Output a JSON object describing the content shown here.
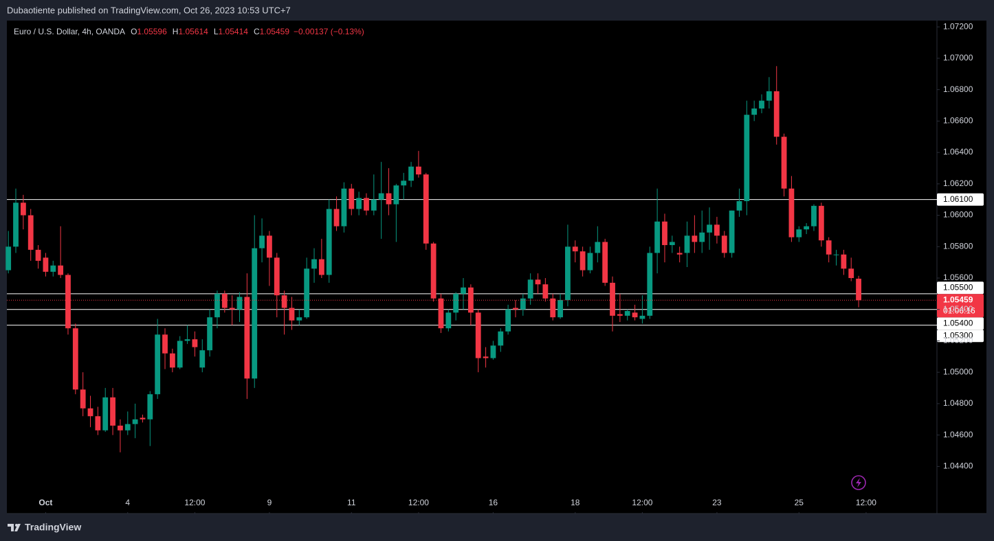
{
  "header": "Dubaotiente published on TradingView.com, Oct 26, 2023 10:53 UTC+7",
  "footer": "TradingView",
  "chart_data": {
    "type": "candlestick",
    "title": "Euro / U.S. Dollar, 4h, OANDA",
    "ohlc_labels": [
      "O",
      "H",
      "L",
      "C"
    ],
    "change": "−0.00137 (−0.13%)",
    "countdown": "01:06:16",
    "up_color": "#089981",
    "down_color": "#f23645",
    "grid": false,
    "ylim": [
      1.041,
      1.0724
    ],
    "xlim": [
      -0.2,
      124.5
    ],
    "yticks": [
      {
        "value": 1.072,
        "label": "1.07200"
      },
      {
        "value": 1.07,
        "label": "1.07000"
      },
      {
        "value": 1.068,
        "label": "1.06800"
      },
      {
        "value": 1.066,
        "label": "1.06600"
      },
      {
        "value": 1.064,
        "label": "1.06400"
      },
      {
        "value": 1.062,
        "label": "1.06200"
      },
      {
        "value": 1.06,
        "label": "1.06000"
      },
      {
        "value": 1.058,
        "label": "1.05800"
      },
      {
        "value": 1.056,
        "label": "1.05600"
      },
      {
        "value": 1.054,
        "label": "1.05400"
      },
      {
        "value": 1.052,
        "label": "1.05200"
      },
      {
        "value": 1.05,
        "label": "1.05000"
      },
      {
        "value": 1.048,
        "label": "1.04800"
      },
      {
        "value": 1.046,
        "label": "1.04600"
      },
      {
        "value": 1.044,
        "label": "1.04400"
      }
    ],
    "xticks": [
      {
        "value": 5,
        "label": "Oct"
      },
      {
        "value": 16,
        "label": "4"
      },
      {
        "value": 25,
        "label": "12:00"
      },
      {
        "value": 35,
        "label": "9"
      },
      {
        "value": 46,
        "label": "11"
      },
      {
        "value": 55,
        "label": "12:00"
      },
      {
        "value": 65,
        "label": "16"
      },
      {
        "value": 76,
        "label": "18"
      },
      {
        "value": 85,
        "label": "12:00"
      },
      {
        "value": 95,
        "label": "23"
      },
      {
        "value": 106,
        "label": "25"
      },
      {
        "value": 115,
        "label": "12:00"
      }
    ],
    "levels": [
      {
        "value": 1.061,
        "label": "1.06100"
      },
      {
        "value": 1.055,
        "label": "1.05500"
      },
      {
        "value": 1.054,
        "label": "1.05400"
      },
      {
        "value": 1.053,
        "label": "1.05300"
      }
    ],
    "candles": [
      [
        1.0565,
        1.059,
        1.0563,
        1.058
      ],
      [
        1.058,
        1.0617,
        1.0576,
        1.0608
      ],
      [
        1.0608,
        1.0613,
        1.0591,
        1.06
      ],
      [
        1.06,
        1.0604,
        1.0571,
        1.0578
      ],
      [
        1.0578,
        1.0581,
        1.0566,
        1.0571
      ],
      [
        1.0573,
        1.0576,
        1.0561,
        1.0564
      ],
      [
        1.0564,
        1.0571,
        1.0561,
        1.0568
      ],
      [
        1.0568,
        1.0593,
        1.056,
        1.0562
      ],
      [
        1.0562,
        1.0563,
        1.0524,
        1.0528
      ],
      [
        1.0528,
        1.0531,
        1.0486,
        1.0489
      ],
      [
        1.0489,
        1.05,
        1.0472,
        1.0477
      ],
      [
        1.0477,
        1.0485,
        1.0465,
        1.0472
      ],
      [
        1.0472,
        1.0478,
        1.046,
        1.0463
      ],
      [
        1.0463,
        1.049,
        1.0462,
        1.0484
      ],
      [
        1.0484,
        1.049,
        1.046,
        1.0466
      ],
      [
        1.0466,
        1.047,
        1.0449,
        1.0463
      ],
      [
        1.0463,
        1.0475,
        1.046,
        1.0467
      ],
      [
        1.0467,
        1.048,
        1.0458,
        1.047
      ],
      [
        1.0471,
        1.0473,
        1.0468,
        1.047
      ],
      [
        1.047,
        1.0488,
        1.0453,
        1.0486
      ],
      [
        1.0486,
        1.0534,
        1.0483,
        1.0524
      ],
      [
        1.0524,
        1.0528,
        1.0502,
        1.0512
      ],
      [
        1.0512,
        1.0515,
        1.05,
        1.0503
      ],
      [
        1.0503,
        1.0523,
        1.0502,
        1.052
      ],
      [
        1.052,
        1.053,
        1.0518,
        1.0521
      ],
      [
        1.0521,
        1.0526,
        1.051,
        1.0516
      ],
      [
        1.0503,
        1.0521,
        1.05,
        1.0514
      ],
      [
        1.0514,
        1.054,
        1.051,
        1.0535
      ],
      [
        1.0535,
        1.0552,
        1.0528,
        1.055
      ],
      [
        1.055,
        1.0552,
        1.0538,
        1.0541
      ],
      [
        1.0541,
        1.0549,
        1.053,
        1.054
      ],
      [
        1.054,
        1.0551,
        1.0532,
        1.0548
      ],
      [
        1.0548,
        1.0563,
        1.0483,
        1.0496
      ],
      [
        1.0496,
        1.06,
        1.049,
        1.0579
      ],
      [
        1.0579,
        1.0598,
        1.057,
        1.0587
      ],
      [
        1.0587,
        1.059,
        1.0555,
        1.0573
      ],
      [
        1.0573,
        1.0576,
        1.0535,
        1.0549
      ],
      [
        1.0549,
        1.0552,
        1.0524,
        1.0541
      ],
      [
        1.0541,
        1.0548,
        1.0527,
        1.0533
      ],
      [
        1.0533,
        1.054,
        1.053,
        1.0535
      ],
      [
        1.0535,
        1.0573,
        1.0534,
        1.0566
      ],
      [
        1.0566,
        1.0579,
        1.0557,
        1.0572
      ],
      [
        1.0572,
        1.0585,
        1.056,
        1.0562
      ],
      [
        1.0562,
        1.061,
        1.0557,
        1.0604
      ],
      [
        1.0604,
        1.0612,
        1.059,
        1.0593
      ],
      [
        1.0593,
        1.0621,
        1.0589,
        1.0617
      ],
      [
        1.0617,
        1.062,
        1.06,
        1.0604
      ],
      [
        1.0604,
        1.0615,
        1.06,
        1.0611
      ],
      [
        1.0611,
        1.0614,
        1.06,
        1.0603
      ],
      [
        1.0603,
        1.0626,
        1.06,
        1.061
      ],
      [
        1.061,
        1.0634,
        1.0585,
        1.0614
      ],
      [
        1.0614,
        1.063,
        1.06,
        1.0607
      ],
      [
        1.0607,
        1.062,
        1.0583,
        1.0619
      ],
      [
        1.0619,
        1.0627,
        1.061,
        1.0622
      ],
      [
        1.0622,
        1.0634,
        1.0618,
        1.0631
      ],
      [
        1.0631,
        1.0641,
        1.0624,
        1.0626
      ],
      [
        1.0626,
        1.0627,
        1.0578,
        1.0582
      ],
      [
        1.0582,
        1.0583,
        1.0545,
        1.0547
      ],
      [
        1.0547,
        1.055,
        1.0525,
        1.0528
      ],
      [
        1.0528,
        1.054,
        1.0526,
        1.0538
      ],
      [
        1.0538,
        1.0551,
        1.0533,
        1.055
      ],
      [
        1.055,
        1.056,
        1.054,
        1.0554
      ],
      [
        1.0554,
        1.0556,
        1.053,
        1.0538
      ],
      [
        1.0538,
        1.054,
        1.05,
        1.0509
      ],
      [
        1.051,
        1.0516,
        1.0503,
        1.0509
      ],
      [
        1.0509,
        1.052,
        1.0508,
        1.0517
      ],
      [
        1.0517,
        1.0528,
        1.0513,
        1.0526
      ],
      [
        1.0526,
        1.0543,
        1.0524,
        1.054
      ],
      [
        1.0541,
        1.0546,
        1.0535,
        1.054
      ],
      [
        1.054,
        1.055,
        1.0536,
        1.0547
      ],
      [
        1.0547,
        1.0563,
        1.0543,
        1.0559
      ],
      [
        1.0559,
        1.0563,
        1.055,
        1.0556
      ],
      [
        1.0556,
        1.056,
        1.0545,
        1.0547
      ],
      [
        1.0547,
        1.055,
        1.0533,
        1.0535
      ],
      [
        1.0535,
        1.055,
        1.0534,
        1.0546
      ],
      [
        1.0546,
        1.0594,
        1.0542,
        1.058
      ],
      [
        1.058,
        1.0584,
        1.057,
        1.0577
      ],
      [
        1.0577,
        1.058,
        1.0561,
        1.0565
      ],
      [
        1.0565,
        1.058,
        1.0563,
        1.0576
      ],
      [
        1.0576,
        1.0593,
        1.057,
        1.0583
      ],
      [
        1.0583,
        1.0585,
        1.0555,
        1.0557
      ],
      [
        1.0557,
        1.0561,
        1.0526,
        1.0536
      ],
      [
        1.0537,
        1.055,
        1.0532,
        1.0536
      ],
      [
        1.0536,
        1.054,
        1.0533,
        1.0539
      ],
      [
        1.0538,
        1.0543,
        1.0533,
        1.0535
      ],
      [
        1.0534,
        1.0549,
        1.0531,
        1.0536
      ],
      [
        1.0536,
        1.058,
        1.0534,
        1.0576
      ],
      [
        1.0576,
        1.0617,
        1.0563,
        1.0596
      ],
      [
        1.0596,
        1.0601,
        1.057,
        1.0581
      ],
      [
        1.0581,
        1.0587,
        1.0576,
        1.0583
      ],
      [
        1.0576,
        1.058,
        1.057,
        1.0575
      ],
      [
        1.0576,
        1.0596,
        1.0567,
        1.0587
      ],
      [
        1.0587,
        1.06,
        1.0576,
        1.0583
      ],
      [
        1.0583,
        1.0603,
        1.0576,
        1.0589
      ],
      [
        1.0589,
        1.0605,
        1.0578,
        1.0594
      ],
      [
        1.0594,
        1.0599,
        1.0582,
        1.0587
      ],
      [
        1.0587,
        1.059,
        1.0573,
        1.0576
      ],
      [
        1.0576,
        1.0603,
        1.0573,
        1.0603
      ],
      [
        1.0603,
        1.0617,
        1.0599,
        1.0609
      ],
      [
        1.0609,
        1.0673,
        1.06,
        1.0664
      ],
      [
        1.0664,
        1.0673,
        1.066,
        1.0668
      ],
      [
        1.0668,
        1.0677,
        1.0665,
        1.0673
      ],
      [
        1.0673,
        1.0688,
        1.0668,
        1.0679
      ],
      [
        1.0679,
        1.0695,
        1.0645,
        1.065
      ],
      [
        1.065,
        1.0652,
        1.0612,
        1.0617
      ],
      [
        1.0617,
        1.0625,
        1.0583,
        1.0586
      ],
      [
        1.0586,
        1.0593,
        1.0583,
        1.0591
      ],
      [
        1.0591,
        1.0595,
        1.0588,
        1.0593
      ],
      [
        1.0593,
        1.0607,
        1.059,
        1.0606
      ],
      [
        1.0606,
        1.0608,
        1.058,
        1.0584
      ],
      [
        1.0584,
        1.0586,
        1.057,
        1.0575
      ],
      [
        1.0575,
        1.0578,
        1.0568,
        1.0575
      ],
      [
        1.0575,
        1.0578,
        1.0562,
        1.0566
      ],
      [
        1.0566,
        1.0573,
        1.0558,
        1.056
      ],
      [
        1.05596,
        1.05614,
        1.05414,
        1.05459
      ]
    ]
  }
}
